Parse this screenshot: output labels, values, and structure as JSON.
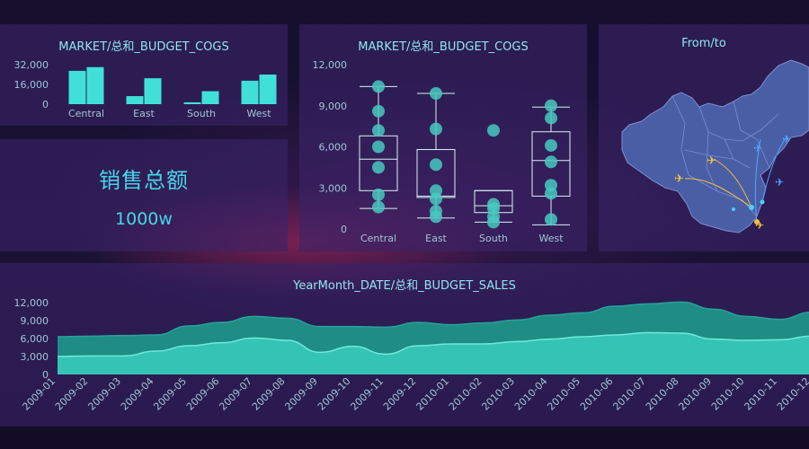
{
  "colors": {
    "accent": "#3fd4d0",
    "bar": "#40e0d8",
    "box_point": "#46c9c0",
    "area_top": "#1f8c86",
    "area_bottom": "#35c3b6",
    "title": "#8fe6f0",
    "map_fill": "#4a5ea6",
    "map_border": "#7d8ed0"
  },
  "kpi": {
    "title": "销售总额",
    "value": "1000w"
  },
  "map": {
    "title": "From/to",
    "icons": [
      "plane-icon",
      "plane-icon",
      "plane-icon",
      "plane-icon",
      "plane-icon",
      "plane-icon"
    ]
  },
  "chart_data": [
    {
      "id": "bar",
      "type": "bar",
      "title": "MARKET/总和_BUDGET_COGS",
      "categories": [
        "Central",
        "East",
        "South",
        "West"
      ],
      "series": [
        {
          "values": [
            27000,
            6500,
            1500,
            19000
          ]
        },
        {
          "values": [
            30000,
            21000,
            10500,
            24000
          ]
        }
      ],
      "yticks": [
        "32,000",
        "16,000",
        "0"
      ],
      "ylim": [
        0,
        32000
      ]
    },
    {
      "id": "box",
      "type": "box",
      "title": "MARKET/总和_BUDGET_COGS",
      "categories": [
        "Central",
        "East",
        "South",
        "West"
      ],
      "boxes": [
        {
          "min": 1500,
          "q1": 2800,
          "median": 5100,
          "q3": 6800,
          "max": 10400,
          "points": [
            10400,
            8600,
            7200,
            6000,
            4500,
            2500,
            1600
          ]
        },
        {
          "min": 800,
          "q1": 2300,
          "median": 2400,
          "q3": 5800,
          "max": 9900,
          "points": [
            9900,
            7300,
            4700,
            2800,
            2200,
            1300,
            900
          ]
        },
        {
          "min": 500,
          "q1": 1200,
          "median": 1700,
          "q3": 2800,
          "max": 2800,
          "points": [
            7200,
            1800,
            1500,
            900,
            500
          ]
        },
        {
          "min": 300,
          "q1": 2400,
          "median": 5000,
          "q3": 7100,
          "max": 8900,
          "points": [
            9000,
            8100,
            6100,
            4900,
            3200,
            2600,
            700
          ]
        }
      ],
      "yticks": [
        "12,000",
        "9,000",
        "6,000",
        "3,000",
        "0"
      ],
      "ylim": [
        0,
        12000
      ]
    },
    {
      "id": "area",
      "type": "area",
      "title": "YearMonth_DATE/总和_BUDGET_SALES",
      "categories": [
        "2009-01",
        "2009-02",
        "2009-03",
        "2009-04",
        "2009-05",
        "2009-06",
        "2009-07",
        "2009-08",
        "2009-09",
        "2009-10",
        "2009-11",
        "2009-12",
        "2010-01",
        "2010-02",
        "2010-03",
        "2010-04",
        "2010-05",
        "2010-06",
        "2010-07",
        "2010-08",
        "2010-09",
        "2010-10",
        "2010-11",
        "2010-12"
      ],
      "series": [
        {
          "values": [
            6300,
            6400,
            6500,
            6600,
            8100,
            8700,
            9700,
            9400,
            8000,
            8000,
            7900,
            8700,
            8300,
            8600,
            9100,
            9900,
            10300,
            11400,
            11800,
            12100,
            10900,
            9700,
            9200,
            10400
          ]
        },
        {
          "values": [
            3000,
            3100,
            3100,
            3900,
            4800,
            5300,
            6100,
            5700,
            3700,
            4700,
            3400,
            4800,
            5100,
            5100,
            5500,
            5900,
            6300,
            6600,
            7000,
            6900,
            5900,
            5700,
            5800,
            6400
          ]
        }
      ],
      "yticks": [
        "12,000",
        "9,000",
        "6,000",
        "3,000",
        "0"
      ],
      "ylim": [
        0,
        12000
      ]
    }
  ]
}
